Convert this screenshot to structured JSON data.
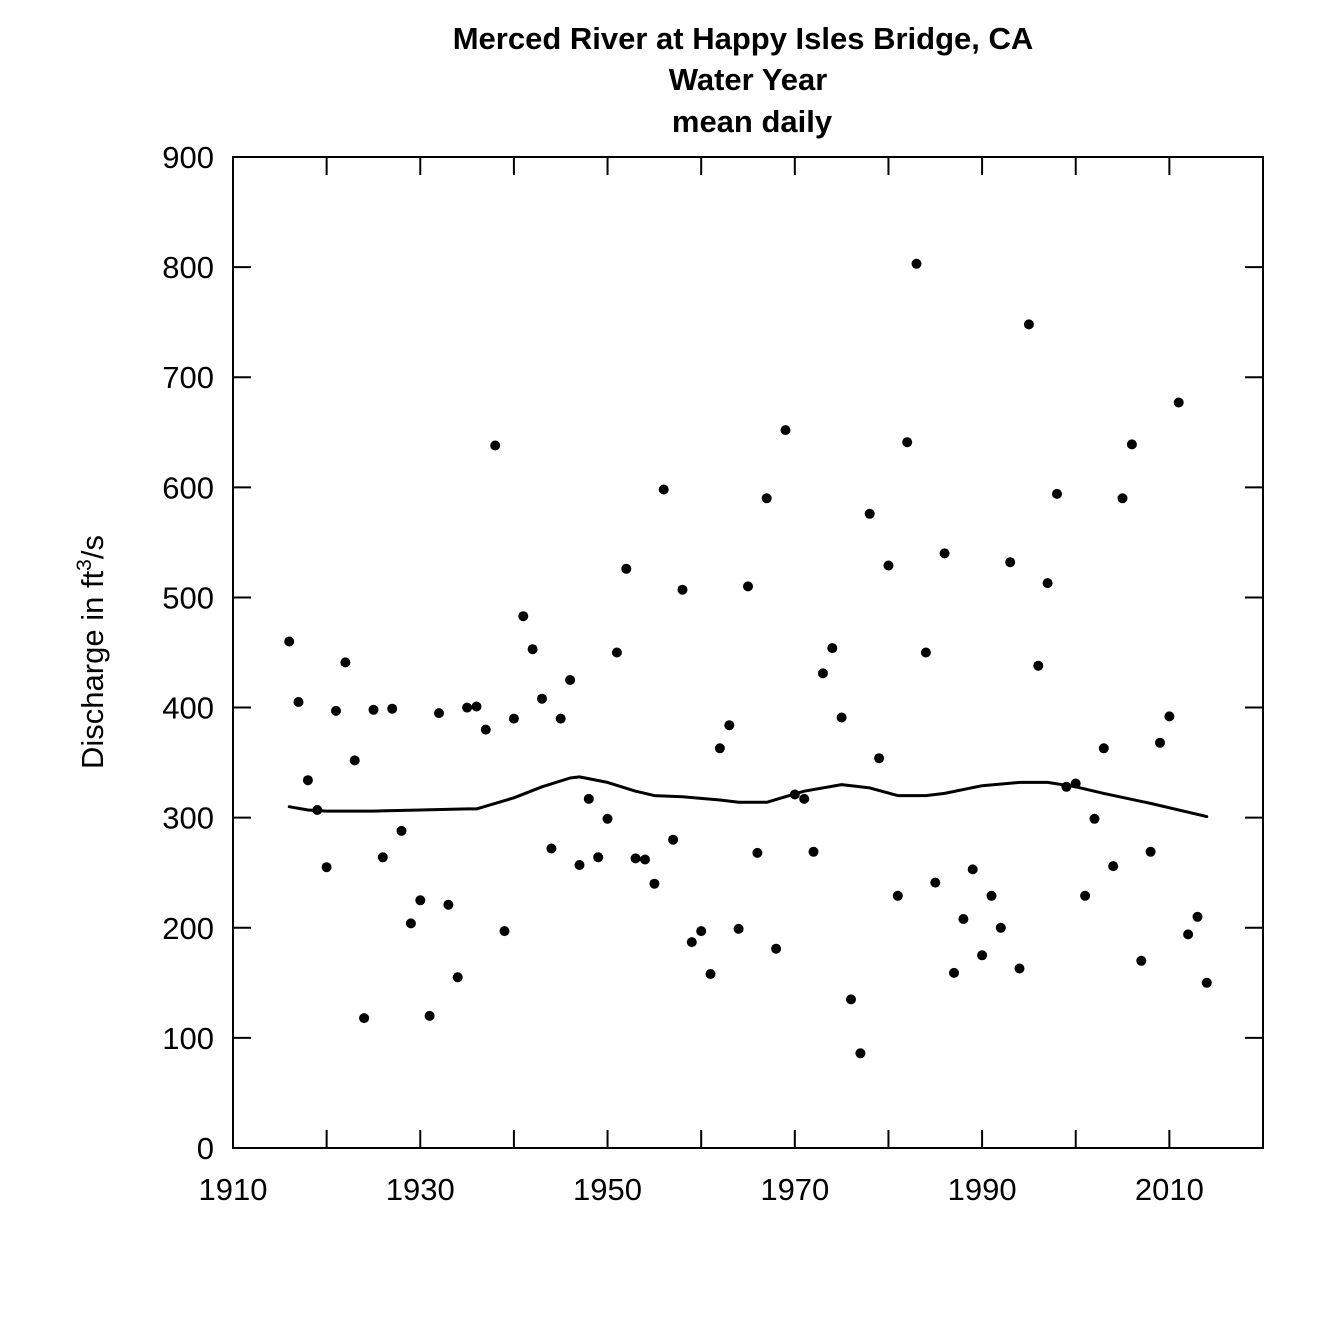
{
  "chart_data": {
    "type": "scatter",
    "title": [
      "Merced River at Happy Isles Bridge, CA",
      "Water Year",
      "mean daily"
    ],
    "ylabel": {
      "main": "Discharge in ft",
      "superscript": "3",
      "suffix": "/s"
    },
    "xlabel": "",
    "xlim": [
      1910,
      2020
    ],
    "ylim": [
      0,
      900
    ],
    "x_ticks": [
      1910,
      1930,
      1950,
      1970,
      1990,
      2010
    ],
    "x_minor_ticks": [
      1920,
      1940,
      1960,
      1980,
      2000
    ],
    "y_ticks": [
      0,
      100,
      200,
      300,
      400,
      500,
      600,
      700,
      800,
      900
    ],
    "grid": false,
    "series": [
      {
        "marker": "dot",
        "points": [
          [
            1916,
            460
          ],
          [
            1917,
            405
          ],
          [
            1918,
            334
          ],
          [
            1919,
            307
          ],
          [
            1920,
            255
          ],
          [
            1921,
            397
          ],
          [
            1922,
            441
          ],
          [
            1923,
            352
          ],
          [
            1924,
            118
          ],
          [
            1925,
            398
          ],
          [
            1926,
            264
          ],
          [
            1927,
            399
          ],
          [
            1928,
            288
          ],
          [
            1929,
            204
          ],
          [
            1930,
            225
          ],
          [
            1931,
            120
          ],
          [
            1932,
            395
          ],
          [
            1933,
            221
          ],
          [
            1934,
            155
          ],
          [
            1935,
            400
          ],
          [
            1936,
            401
          ],
          [
            1937,
            380
          ],
          [
            1938,
            638
          ],
          [
            1939,
            197
          ],
          [
            1940,
            390
          ],
          [
            1941,
            483
          ],
          [
            1942,
            453
          ],
          [
            1943,
            408
          ],
          [
            1944,
            272
          ],
          [
            1945,
            390
          ],
          [
            1946,
            425
          ],
          [
            1947,
            257
          ],
          [
            1948,
            317
          ],
          [
            1949,
            264
          ],
          [
            1950,
            299
          ],
          [
            1951,
            450
          ],
          [
            1952,
            526
          ],
          [
            1953,
            263
          ],
          [
            1954,
            262
          ],
          [
            1955,
            240
          ],
          [
            1956,
            598
          ],
          [
            1957,
            280
          ],
          [
            1958,
            507
          ],
          [
            1959,
            187
          ],
          [
            1960,
            197
          ],
          [
            1961,
            158
          ],
          [
            1962,
            363
          ],
          [
            1963,
            384
          ],
          [
            1964,
            199
          ],
          [
            1965,
            510
          ],
          [
            1966,
            268
          ],
          [
            1967,
            590
          ],
          [
            1968,
            181
          ],
          [
            1969,
            652
          ],
          [
            1970,
            321
          ],
          [
            1971,
            317
          ],
          [
            1972,
            269
          ],
          [
            1973,
            431
          ],
          [
            1974,
            454
          ],
          [
            1975,
            391
          ],
          [
            1976,
            135
          ],
          [
            1977,
            86
          ],
          [
            1978,
            576
          ],
          [
            1979,
            354
          ],
          [
            1980,
            529
          ],
          [
            1981,
            229
          ],
          [
            1982,
            641
          ],
          [
            1983,
            803
          ],
          [
            1984,
            450
          ],
          [
            1985,
            241
          ],
          [
            1986,
            540
          ],
          [
            1987,
            159
          ],
          [
            1988,
            208
          ],
          [
            1989,
            253
          ],
          [
            1990,
            175
          ],
          [
            1991,
            229
          ],
          [
            1992,
            200
          ],
          [
            1993,
            532
          ],
          [
            1994,
            163
          ],
          [
            1995,
            748
          ],
          [
            1996,
            438
          ],
          [
            1997,
            513
          ],
          [
            1998,
            594
          ],
          [
            1999,
            328
          ],
          [
            2000,
            331
          ],
          [
            2001,
            229
          ],
          [
            2002,
            299
          ],
          [
            2003,
            363
          ],
          [
            2004,
            256
          ],
          [
            2005,
            590
          ],
          [
            2006,
            639
          ],
          [
            2007,
            170
          ],
          [
            2008,
            269
          ],
          [
            2009,
            368
          ],
          [
            2010,
            392
          ],
          [
            2011,
            677
          ],
          [
            2012,
            194
          ],
          [
            2013,
            210
          ],
          [
            2014,
            150
          ]
        ]
      },
      {
        "marker": "line",
        "points": [
          [
            1916,
            310
          ],
          [
            1918,
            307
          ],
          [
            1920,
            306
          ],
          [
            1925,
            306
          ],
          [
            1930,
            307
          ],
          [
            1935,
            308
          ],
          [
            1936,
            308
          ],
          [
            1940,
            318
          ],
          [
            1943,
            328
          ],
          [
            1946,
            336
          ],
          [
            1947,
            337
          ],
          [
            1950,
            332
          ],
          [
            1953,
            324
          ],
          [
            1955,
            320
          ],
          [
            1958,
            319
          ],
          [
            1962,
            316
          ],
          [
            1964,
            314
          ],
          [
            1967,
            314
          ],
          [
            1969,
            319
          ],
          [
            1971,
            324
          ],
          [
            1975,
            330
          ],
          [
            1978,
            327
          ],
          [
            1981,
            320
          ],
          [
            1984,
            320
          ],
          [
            1986,
            322
          ],
          [
            1990,
            329
          ],
          [
            1994,
            332
          ],
          [
            1997,
            332
          ],
          [
            2000,
            328
          ],
          [
            2003,
            322
          ],
          [
            2008,
            313
          ],
          [
            2014,
            301
          ]
        ]
      }
    ]
  }
}
